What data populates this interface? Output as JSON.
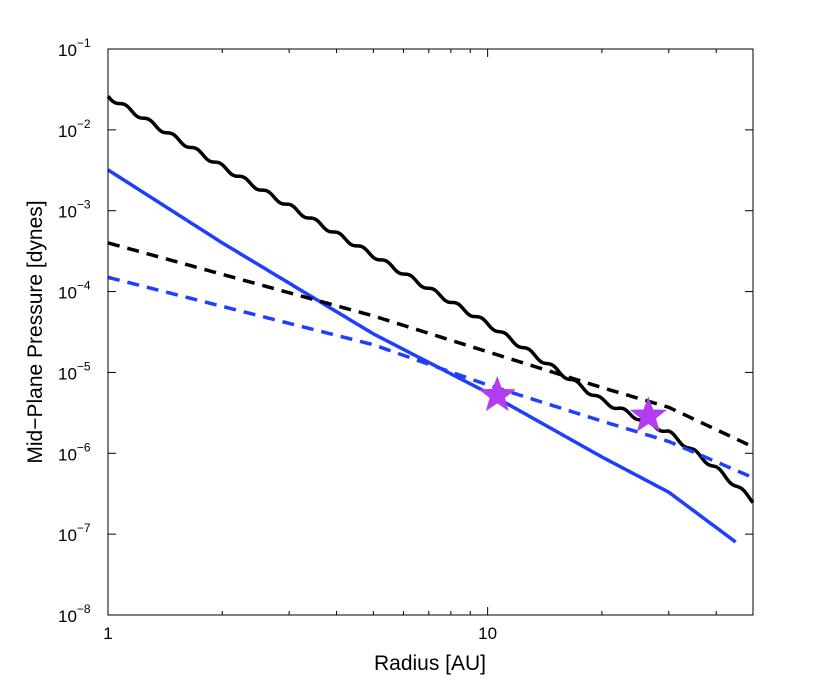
{
  "chart_data": {
    "type": "line",
    "title": "",
    "xlabel": "Radius [AU]",
    "ylabel": "Mid−Plane Pressure [dynes]",
    "x_scale": "log",
    "y_scale": "log",
    "xlim": [
      1,
      50
    ],
    "ylim": [
      1e-08,
      0.1
    ],
    "grid": false,
    "legend": "none",
    "x_ticks": [
      {
        "value": 1,
        "label": "1"
      },
      {
        "value": 10,
        "label": "10"
      }
    ],
    "y_ticks": [
      {
        "value": 1e-08,
        "base": "10",
        "exp": "−8"
      },
      {
        "value": 1e-07,
        "base": "10",
        "exp": "−7"
      },
      {
        "value": 1e-06,
        "base": "10",
        "exp": "−6"
      },
      {
        "value": 1e-05,
        "base": "10",
        "exp": "−5"
      },
      {
        "value": 0.0001,
        "base": "10",
        "exp": "−4"
      },
      {
        "value": 0.001,
        "base": "10",
        "exp": "−3"
      },
      {
        "value": 0.01,
        "base": "10",
        "exp": "−2"
      },
      {
        "value": 0.1,
        "base": "10",
        "exp": "−1"
      }
    ],
    "series": [
      {
        "color": "#000000",
        "style": "solid",
        "wavy": true,
        "x": [
          1,
          2,
          5,
          10,
          20,
          30,
          40,
          50
        ],
        "y": [
          0.026,
          0.0035,
          0.00028,
          4e-05,
          4.5e-06,
          1.8e-06,
          6.5e-07,
          2.6e-07
        ]
      },
      {
        "color": "#1f3fff",
        "style": "solid",
        "wavy": false,
        "x": [
          1,
          2,
          5,
          10,
          20,
          30,
          45
        ],
        "y": [
          0.0032,
          0.0004,
          3e-05,
          5.6e-06,
          9e-07,
          3.3e-07,
          8e-08
        ]
      },
      {
        "color": "#000000",
        "style": "dashed",
        "wavy": false,
        "x": [
          1,
          5,
          10,
          20,
          30,
          50
        ],
        "y": [
          0.0004,
          5e-05,
          1.8e-05,
          6.5e-06,
          3.7e-06,
          1.2e-06
        ]
      },
      {
        "color": "#1f3fff",
        "style": "dashed",
        "wavy": false,
        "x": [
          1,
          5,
          10,
          20,
          30,
          50
        ],
        "y": [
          0.00015,
          2.2e-05,
          7e-06,
          2.5e-06,
          1.4e-06,
          5e-07
        ]
      }
    ],
    "markers": [
      {
        "shape": "star",
        "color": "#b43cf0",
        "x": 10.6,
        "y": 5.2e-06
      },
      {
        "shape": "star",
        "color": "#b43cf0",
        "x": 26.5,
        "y": 2.9e-06
      }
    ]
  }
}
